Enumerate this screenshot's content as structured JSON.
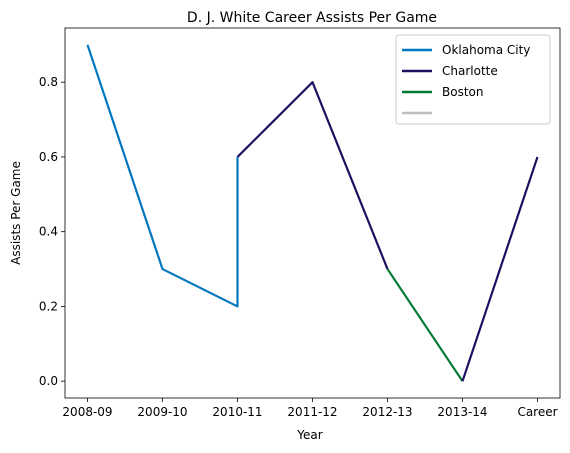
{
  "chart_data": {
    "type": "line",
    "title": "D. J. White Career Assists Per Game",
    "xlabel": "Year",
    "ylabel": "Assists Per Game",
    "categories": [
      "2008-09",
      "2009-10",
      "2010-11",
      "2011-12",
      "2012-13",
      "2013-14",
      "Career"
    ],
    "ylim": [
      -0.045,
      0.945
    ],
    "yticks": [
      0.0,
      0.2,
      0.4,
      0.6,
      0.8
    ],
    "ytick_labels": [
      "0.0",
      "0.2",
      "0.4",
      "0.6",
      "0.8"
    ],
    "grid": false,
    "legend_position": "top-right",
    "series": [
      {
        "name": "Oklahoma City",
        "color": "#0077C0",
        "points": [
          [
            "2008-09",
            0.9
          ],
          [
            "2009-10",
            0.3
          ],
          [
            "2010-11",
            0.2
          ],
          [
            "2010-11",
            0.6
          ]
        ]
      },
      {
        "name": "Charlotte",
        "color": "#1D1160",
        "points": [
          [
            "2010-11",
            0.6
          ],
          [
            "2011-12",
            0.8
          ],
          [
            "2012-13",
            0.3
          ]
        ]
      },
      {
        "name": "Boston",
        "color": "#007A33",
        "points": [
          [
            "2012-13",
            0.3
          ],
          [
            "2013-14",
            0.0
          ]
        ]
      },
      {
        "name": "Charlotte",
        "color": "#1D1160",
        "points": [
          [
            "2013-14",
            0.0
          ],
          [
            "Career",
            0.6
          ]
        ]
      },
      {
        "name": "",
        "color": "#BEBEBE",
        "points": []
      }
    ]
  }
}
